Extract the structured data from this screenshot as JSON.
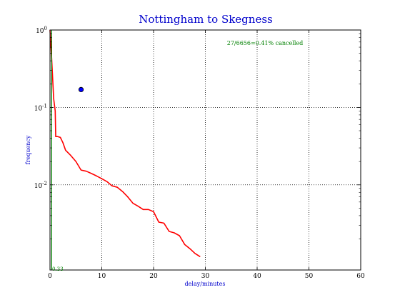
{
  "chart_data": {
    "type": "line",
    "title": "Nottingham to Skegness",
    "xlabel": "delay/minutes",
    "ylabel": "frequency",
    "xlim": [
      0,
      60
    ],
    "ylim_log10": [
      -3.1,
      0
    ],
    "yscale": "log",
    "grid": true,
    "x_ticks": [
      0,
      10,
      20,
      30,
      40,
      50,
      60
    ],
    "x_tick_labels": [
      "0",
      "10",
      "20",
      "30",
      "40",
      "50",
      "60"
    ],
    "y_ticks": [
      1,
      0.1,
      0.01
    ],
    "y_tick_labels": [
      {
        "base": "10",
        "exp": "0"
      },
      {
        "base": "10",
        "exp": "-1"
      },
      {
        "base": "10",
        "exp": "-2"
      }
    ],
    "annotations": {
      "cancelled_text": "27/6656=0.41% cancelled",
      "vline_label": "0.33"
    },
    "series": [
      {
        "kind": "line",
        "color": "#ff0000",
        "x": [
          0,
          0.3,
          0.5,
          0.7,
          1,
          1.1,
          1.5,
          2,
          2.5,
          3,
          4,
          5,
          6,
          7,
          8,
          9,
          10,
          11,
          12,
          13,
          14,
          15,
          16,
          17,
          18,
          19,
          20,
          21,
          22,
          23,
          24,
          25,
          26,
          27,
          28,
          29
        ],
        "y": [
          1.0,
          0.45,
          0.25,
          0.13,
          0.09,
          0.042,
          0.042,
          0.041,
          0.035,
          0.028,
          0.024,
          0.02,
          0.0155,
          0.015,
          0.014,
          0.013,
          0.012,
          0.011,
          0.0097,
          0.0093,
          0.0082,
          0.007,
          0.0058,
          0.0053,
          0.0048,
          0.0048,
          0.0045,
          0.0033,
          0.0032,
          0.0025,
          0.0024,
          0.0022,
          0.0017,
          0.0015,
          0.0013,
          0.00118
        ]
      },
      {
        "kind": "vline",
        "color": "#008000",
        "x": 0.33
      },
      {
        "kind": "point",
        "color": "#0000ff",
        "x": 6,
        "y": 0.17
      }
    ]
  }
}
